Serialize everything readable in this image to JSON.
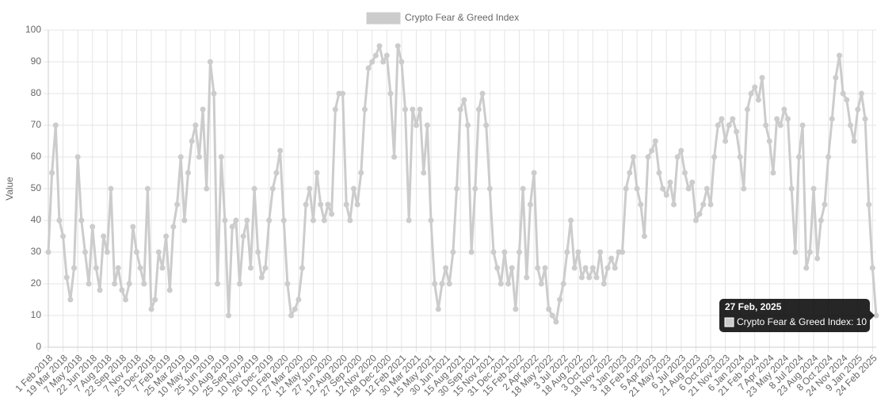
{
  "chart_data": {
    "type": "line",
    "y_label": "Value",
    "legend": "top",
    "grid": true,
    "ylim": [
      0,
      100
    ],
    "yticks": [
      0,
      10,
      20,
      30,
      40,
      50,
      60,
      70,
      80,
      90,
      100
    ],
    "categories": [
      "1 Feb 2018",
      null,
      null,
      null,
      "19 Mar 2018",
      null,
      null,
      null,
      "7 May 2018",
      null,
      null,
      null,
      "22 Jun 2018",
      null,
      null,
      null,
      "7 Aug 2018",
      null,
      null,
      null,
      "22 Sep 2018",
      null,
      null,
      null,
      "7 Nov 2018",
      null,
      null,
      null,
      "23 Dec 2018",
      null,
      null,
      null,
      "7 Feb 2019",
      null,
      null,
      null,
      "25 Mar 2019",
      null,
      null,
      null,
      "10 May 2019",
      null,
      null,
      null,
      "25 Jun 2019",
      null,
      null,
      null,
      "10 Aug 2019",
      null,
      null,
      null,
      "25 Sep 2019",
      null,
      null,
      null,
      "10 Nov 2019",
      null,
      null,
      null,
      "26 Dec 2019",
      null,
      null,
      null,
      "10 Feb 2020",
      null,
      null,
      null,
      "27 Mar 2020",
      null,
      null,
      null,
      "12 May 2020",
      null,
      null,
      null,
      "27 Jun 2020",
      null,
      null,
      null,
      "12 Aug 2020",
      null,
      null,
      null,
      "27 Sep 2020",
      null,
      null,
      null,
      "12 Nov 2020",
      null,
      null,
      null,
      "28 Dec 2020",
      null,
      null,
      null,
      "12 Feb 2021",
      null,
      null,
      null,
      "30 Mar 2021",
      null,
      null,
      null,
      "15 May 2021",
      null,
      null,
      null,
      "30 Jun 2021",
      null,
      null,
      null,
      "15 Aug 2021",
      null,
      null,
      null,
      "30 Sep 2021",
      null,
      null,
      null,
      "15 Nov 2021",
      null,
      null,
      null,
      "31 Dec 2021",
      null,
      null,
      null,
      "15 Feb 2022",
      null,
      null,
      null,
      "2 Apr 2022",
      null,
      null,
      null,
      "18 May 2022",
      null,
      null,
      null,
      "3 Jul 2022",
      null,
      null,
      null,
      "18 Aug 2022",
      null,
      null,
      null,
      "3 Oct 2022",
      null,
      null,
      null,
      "18 Nov 2022",
      null,
      null,
      null,
      "3 Jan 2023",
      null,
      null,
      null,
      "18 Feb 2023",
      null,
      null,
      null,
      "5 Apr 2023",
      null,
      null,
      null,
      "21 May 2023",
      null,
      null,
      null,
      "6 Jul 2023",
      null,
      null,
      null,
      "21 Aug 2023",
      null,
      null,
      null,
      "6 Oct 2023",
      null,
      null,
      null,
      "21 Nov 2023",
      null,
      null,
      null,
      "6 Jan 2024",
      null,
      null,
      null,
      "21 Feb 2024",
      null,
      null,
      null,
      "7 Apr 2024",
      null,
      null,
      null,
      "23 May 2024",
      null,
      null,
      null,
      "8 Jul 2024",
      null,
      null,
      null,
      "23 Aug 2024",
      null,
      null,
      null,
      "8 Oct 2024",
      null,
      null,
      null,
      "24 Nov 2024",
      null,
      null,
      null,
      "9 Jan 2025",
      null,
      null,
      null,
      "24 Feb 2025",
      null
    ],
    "series": [
      {
        "name": "Crypto Fear & Greed Index",
        "color": "#cccccc",
        "values": [
          30,
          55,
          70,
          40,
          35,
          22,
          15,
          25,
          60,
          40,
          30,
          20,
          38,
          25,
          18,
          35,
          30,
          50,
          20,
          25,
          18,
          15,
          20,
          38,
          30,
          25,
          20,
          50,
          12,
          15,
          30,
          25,
          35,
          18,
          38,
          45,
          60,
          40,
          55,
          65,
          70,
          60,
          75,
          50,
          90,
          80,
          20,
          60,
          40,
          10,
          38,
          40,
          20,
          35,
          40,
          25,
          50,
          30,
          22,
          25,
          40,
          50,
          55,
          62,
          40,
          20,
          10,
          12,
          15,
          25,
          45,
          50,
          40,
          55,
          45,
          40,
          45,
          42,
          75,
          80,
          80,
          45,
          40,
          50,
          45,
          55,
          75,
          88,
          90,
          92,
          95,
          90,
          92,
          80,
          60,
          95,
          90,
          75,
          40,
          75,
          70,
          75,
          55,
          70,
          40,
          20,
          12,
          20,
          25,
          20,
          30,
          50,
          75,
          78,
          70,
          30,
          50,
          75,
          80,
          70,
          50,
          30,
          25,
          20,
          30,
          20,
          25,
          12,
          30,
          50,
          22,
          45,
          55,
          25,
          20,
          25,
          12,
          10,
          8,
          15,
          20,
          30,
          40,
          25,
          30,
          22,
          25,
          22,
          25,
          22,
          30,
          20,
          25,
          28,
          25,
          30,
          30,
          50,
          55,
          60,
          50,
          45,
          35,
          60,
          62,
          65,
          55,
          50,
          48,
          52,
          45,
          60,
          62,
          55,
          50,
          52,
          40,
          42,
          45,
          50,
          45,
          60,
          70,
          72,
          65,
          70,
          72,
          68,
          60,
          50,
          75,
          80,
          82,
          78,
          85,
          70,
          65,
          55,
          72,
          70,
          75,
          72,
          50,
          30,
          60,
          70,
          25,
          30,
          50,
          28,
          40,
          45,
          60,
          72,
          85,
          92,
          80,
          78,
          70,
          65,
          75,
          80,
          72,
          45,
          25,
          10
        ]
      }
    ],
    "tooltip": {
      "title": "27 Feb, 2025",
      "label": "Crypto Fear & Greed Index: 10"
    }
  }
}
